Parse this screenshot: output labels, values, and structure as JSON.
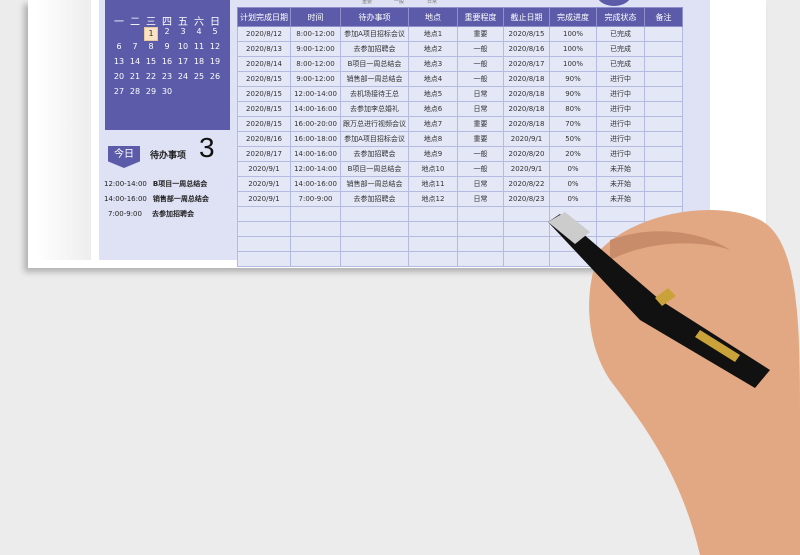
{
  "calendar": {
    "weekdays": [
      "一",
      "二",
      "三",
      "四",
      "五",
      "六",
      "日"
    ],
    "start_offset": 2,
    "days": 30,
    "today": 1
  },
  "today_badge": "今日",
  "todo_label": "待办事项",
  "todo_count": "3",
  "agenda": [
    {
      "time": "12:00-14:00",
      "task": "B项目一周总结会"
    },
    {
      "time": "14:00-16:00",
      "task": "销售部一周总结会"
    },
    {
      "time": "7:00-9:00",
      "task": "去参加招聘会"
    }
  ],
  "top_labels": [
    "重要",
    "一般",
    "日常"
  ],
  "table": {
    "headers": [
      "计划完成日期",
      "时间",
      "待办事项",
      "地点",
      "重要程度",
      "截止日期",
      "完成进度",
      "完成状态",
      "备注"
    ],
    "rows": [
      [
        "2020/8/12",
        "8:00-12:00",
        "参加A项目招标会议",
        "地点1",
        "重要",
        "2020/8/15",
        "100%",
        "已完成",
        ""
      ],
      [
        "2020/8/13",
        "9:00-12:00",
        "去参加招聘会",
        "地点2",
        "一般",
        "2020/8/16",
        "100%",
        "已完成",
        ""
      ],
      [
        "2020/8/14",
        "8:00-12:00",
        "B项目一周总结会",
        "地点3",
        "一般",
        "2020/8/17",
        "100%",
        "已完成",
        ""
      ],
      [
        "2020/8/15",
        "9:00-12:00",
        "销售部一周总结会",
        "地点4",
        "一般",
        "2020/8/18",
        "90%",
        "进行中",
        ""
      ],
      [
        "2020/8/15",
        "12:00-14:00",
        "去机场接待王总",
        "地点5",
        "日常",
        "2020/8/18",
        "90%",
        "进行中",
        ""
      ],
      [
        "2020/8/15",
        "14:00-16:00",
        "去参加李总婚礼",
        "地点6",
        "日常",
        "2020/8/18",
        "80%",
        "进行中",
        ""
      ],
      [
        "2020/8/15",
        "16:00-20:00",
        "跟万总进行视频会议",
        "地点7",
        "重要",
        "2020/8/18",
        "70%",
        "进行中",
        ""
      ],
      [
        "2020/8/16",
        "16:00-18:00",
        "参加A项目招标会议",
        "地点8",
        "重要",
        "2020/9/1",
        "50%",
        "进行中",
        ""
      ],
      [
        "2020/8/17",
        "14:00-16:00",
        "去参加招聘会",
        "地点9",
        "一般",
        "2020/8/20",
        "20%",
        "进行中",
        ""
      ],
      [
        "2020/9/1",
        "12:00-14:00",
        "B项目一周总结会",
        "地点10",
        "一般",
        "2020/9/1",
        "0%",
        "未开始",
        ""
      ],
      [
        "2020/9/1",
        "14:00-16:00",
        "销售部一周总结会",
        "地点11",
        "日常",
        "2020/8/22",
        "0%",
        "未开始",
        ""
      ],
      [
        "2020/9/1",
        "7:00-9:00",
        "去参加招聘会",
        "地点12",
        "日常",
        "2020/8/23",
        "0%",
        "未开始",
        ""
      ]
    ]
  }
}
